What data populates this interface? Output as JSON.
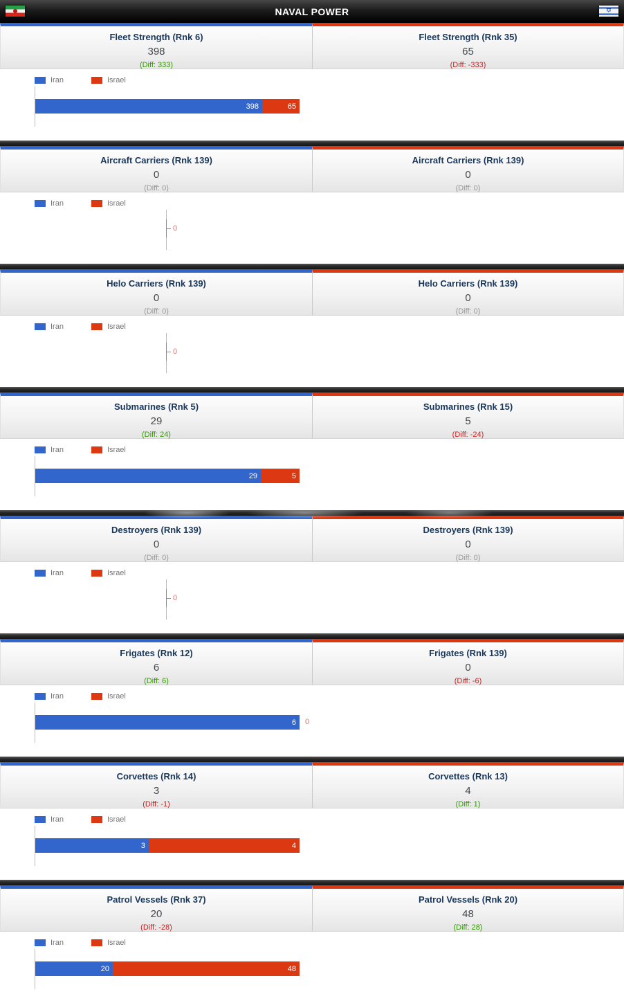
{
  "header": {
    "title": "NAVAL POWER"
  },
  "legend": {
    "iran": "Iran",
    "israel": "Israel"
  },
  "colors": {
    "iran": "#3366cc",
    "israel": "#dc3912",
    "iran_border": "#3366cc",
    "israel_border": "#dc3912",
    "diff_positive": "#339900",
    "diff_negative": "#cc2222",
    "diff_zero": "#999999",
    "zero_tick_label": "#e57373"
  },
  "sections": [
    {
      "name": "fleet-strength",
      "left": {
        "title": "Fleet Strength (Rnk 6)",
        "value": "398",
        "diff": "(Diff: 333)",
        "diff_type": "positive"
      },
      "right": {
        "title": "Fleet Strength (Rnk 35)",
        "value": "65",
        "diff": "(Diff: -333)",
        "diff_type": "negative"
      },
      "chart": {
        "iran": 398,
        "israel": 65
      }
    },
    {
      "name": "aircraft-carriers",
      "left": {
        "title": "Aircraft Carriers (Rnk 139)",
        "value": "0",
        "diff": "(Diff: 0)",
        "diff_type": "zero"
      },
      "right": {
        "title": "Aircraft Carriers (Rnk 139)",
        "value": "0",
        "diff": "(Diff: 0)",
        "diff_type": "zero"
      },
      "chart": {
        "iran": 0,
        "israel": 0
      }
    },
    {
      "name": "helo-carriers",
      "left": {
        "title": "Helo Carriers (Rnk 139)",
        "value": "0",
        "diff": "(Diff: 0)",
        "diff_type": "zero"
      },
      "right": {
        "title": "Helo Carriers (Rnk 139)",
        "value": "0",
        "diff": "(Diff: 0)",
        "diff_type": "zero"
      },
      "chart": {
        "iran": 0,
        "israel": 0
      }
    },
    {
      "name": "submarines",
      "left": {
        "title": "Submarines (Rnk 5)",
        "value": "29",
        "diff": "(Diff: 24)",
        "diff_type": "positive"
      },
      "right": {
        "title": "Submarines (Rnk 15)",
        "value": "5",
        "diff": "(Diff: -24)",
        "diff_type": "negative"
      },
      "chart": {
        "iran": 29,
        "israel": 5
      }
    },
    {
      "name": "destroyers",
      "left": {
        "title": "Destroyers (Rnk 139)",
        "value": "0",
        "diff": "(Diff: 0)",
        "diff_type": "zero"
      },
      "right": {
        "title": "Destroyers (Rnk 139)",
        "value": "0",
        "diff": "(Diff: 0)",
        "diff_type": "zero"
      },
      "chart": {
        "iran": 0,
        "israel": 0
      }
    },
    {
      "name": "frigates",
      "left": {
        "title": "Frigates (Rnk 12)",
        "value": "6",
        "diff": "(Diff: 6)",
        "diff_type": "positive"
      },
      "right": {
        "title": "Frigates (Rnk 139)",
        "value": "0",
        "diff": "(Diff: -6)",
        "diff_type": "negative"
      },
      "chart": {
        "iran": 6,
        "israel": 0
      }
    },
    {
      "name": "corvettes",
      "left": {
        "title": "Corvettes (Rnk 14)",
        "value": "3",
        "diff": "(Diff: -1)",
        "diff_type": "negative"
      },
      "right": {
        "title": "Corvettes (Rnk 13)",
        "value": "4",
        "diff": "(Diff: 1)",
        "diff_type": "positive"
      },
      "chart": {
        "iran": 3,
        "israel": 4
      }
    },
    {
      "name": "patrol-vessels",
      "left": {
        "title": "Patrol Vessels (Rnk 37)",
        "value": "20",
        "diff": "(Diff: -28)",
        "diff_type": "negative"
      },
      "right": {
        "title": "Patrol Vessels (Rnk 20)",
        "value": "48",
        "diff": "(Diff: 28)",
        "diff_type": "positive"
      },
      "chart": {
        "iran": 20,
        "israel": 48
      }
    }
  ],
  "chart_data": [
    {
      "type": "bar",
      "orientation": "horizontal",
      "stacked": true,
      "title": "Fleet Strength",
      "legend": [
        "Iran",
        "Israel"
      ],
      "legend_position": "top",
      "series": [
        {
          "name": "Iran",
          "values": [
            398
          ]
        },
        {
          "name": "Israel",
          "values": [
            65
          ]
        }
      ]
    },
    {
      "type": "bar",
      "orientation": "horizontal",
      "stacked": true,
      "title": "Aircraft Carriers",
      "legend": [
        "Iran",
        "Israel"
      ],
      "legend_position": "top",
      "series": [
        {
          "name": "Iran",
          "values": [
            0
          ]
        },
        {
          "name": "Israel",
          "values": [
            0
          ]
        }
      ]
    },
    {
      "type": "bar",
      "orientation": "horizontal",
      "stacked": true,
      "title": "Helo Carriers",
      "legend": [
        "Iran",
        "Israel"
      ],
      "legend_position": "top",
      "series": [
        {
          "name": "Iran",
          "values": [
            0
          ]
        },
        {
          "name": "Israel",
          "values": [
            0
          ]
        }
      ]
    },
    {
      "type": "bar",
      "orientation": "horizontal",
      "stacked": true,
      "title": "Submarines",
      "legend": [
        "Iran",
        "Israel"
      ],
      "legend_position": "top",
      "series": [
        {
          "name": "Iran",
          "values": [
            29
          ]
        },
        {
          "name": "Israel",
          "values": [
            5
          ]
        }
      ]
    },
    {
      "type": "bar",
      "orientation": "horizontal",
      "stacked": true,
      "title": "Destroyers",
      "legend": [
        "Iran",
        "Israel"
      ],
      "legend_position": "top",
      "series": [
        {
          "name": "Iran",
          "values": [
            0
          ]
        },
        {
          "name": "Israel",
          "values": [
            0
          ]
        }
      ]
    },
    {
      "type": "bar",
      "orientation": "horizontal",
      "stacked": true,
      "title": "Frigates",
      "legend": [
        "Iran",
        "Israel"
      ],
      "legend_position": "top",
      "series": [
        {
          "name": "Iran",
          "values": [
            6
          ]
        },
        {
          "name": "Israel",
          "values": [
            0
          ]
        }
      ]
    },
    {
      "type": "bar",
      "orientation": "horizontal",
      "stacked": true,
      "title": "Corvettes",
      "legend": [
        "Iran",
        "Israel"
      ],
      "legend_position": "top",
      "series": [
        {
          "name": "Iran",
          "values": [
            3
          ]
        },
        {
          "name": "Israel",
          "values": [
            4
          ]
        }
      ]
    },
    {
      "type": "bar",
      "orientation": "horizontal",
      "stacked": true,
      "title": "Patrol Vessels",
      "legend": [
        "Iran",
        "Israel"
      ],
      "legend_position": "top",
      "series": [
        {
          "name": "Iran",
          "values": [
            20
          ]
        },
        {
          "name": "Israel",
          "values": [
            48
          ]
        }
      ]
    }
  ]
}
